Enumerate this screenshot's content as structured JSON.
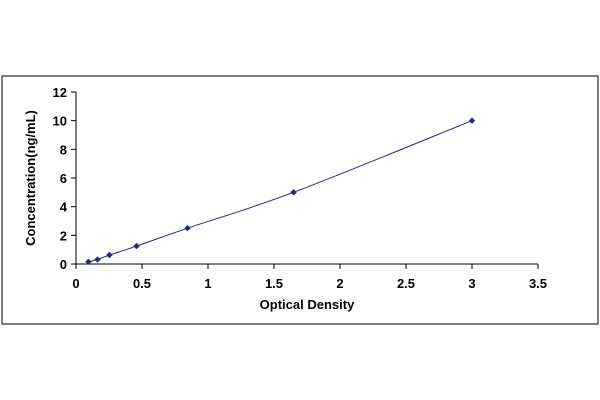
{
  "chart_data": {
    "type": "scatter",
    "title": "",
    "xlabel": "Optical Density",
    "ylabel": "Concentration(ng/mL)",
    "xlim": [
      0,
      3.5
    ],
    "ylim": [
      0,
      12
    ],
    "x_ticks": [
      "0",
      "0.5",
      "1",
      "1.5",
      "2",
      "2.5",
      "3",
      "3.5"
    ],
    "y_ticks": [
      "0",
      "2",
      "4",
      "6",
      "8",
      "10",
      "12"
    ],
    "grid": false,
    "legend": "none",
    "series": [
      {
        "x": [
          0.094,
          0.163,
          0.253,
          0.459,
          0.845,
          1.648,
          3.0
        ],
        "y": [
          0.156,
          0.312,
          0.625,
          1.25,
          2.5,
          5.0,
          10.0
        ],
        "marker": "diamond",
        "color": "#1f2a7a",
        "fit_line": "smooth"
      }
    ]
  }
}
